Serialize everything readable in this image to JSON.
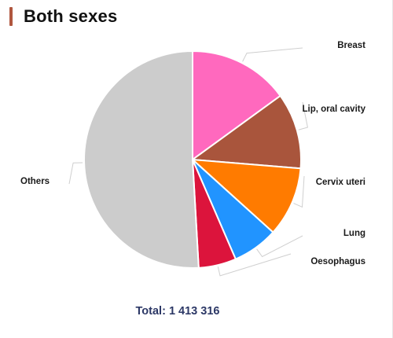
{
  "title": "Both sexes",
  "total": {
    "label": "Total:",
    "value": "1 413 316"
  },
  "colors": {
    "title_accent": "#b0573f",
    "total_text": "#2c3866"
  },
  "chart_data": {
    "type": "pie",
    "title": "Both sexes",
    "total": 1413316,
    "slices": [
      {
        "label": "Breast",
        "percent": 15.0,
        "color": "#ff69be"
      },
      {
        "label": "Lip, oral cavity",
        "percent": 11.3,
        "color": "#a9553c"
      },
      {
        "label": "Cervix uteri",
        "percent": 10.4,
        "color": "#ff7b00"
      },
      {
        "label": "Lung",
        "percent": 6.8,
        "color": "#2194ff"
      },
      {
        "label": "Oesophagus",
        "percent": 5.6,
        "color": "#dc143c"
      },
      {
        "label": "Others",
        "percent": 50.9,
        "color": "#cccccc"
      }
    ],
    "start": "12 o'clock",
    "direction": "clockwise",
    "legend": "none"
  }
}
